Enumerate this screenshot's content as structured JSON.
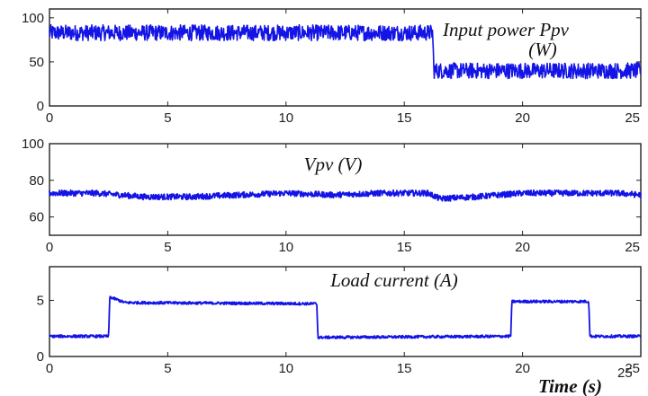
{
  "figure": {
    "x_label": "Time (s)",
    "x_label_superscript": "25"
  },
  "chart_data": [
    {
      "type": "line",
      "title": "Input power Ppv",
      "title_line2": "(W)",
      "xlabel": "",
      "ylabel": "",
      "xlim": [
        0,
        25
      ],
      "ylim": [
        0,
        110
      ],
      "xticks": [
        0,
        5,
        10,
        15,
        20,
        25
      ],
      "yticks": [
        0,
        50,
        100
      ],
      "grid": false,
      "series": [
        {
          "color": "#1414e6",
          "noise": 9,
          "x": [
            0,
            16.2,
            16.25,
            25
          ],
          "y": [
            83,
            83,
            40,
            40
          ]
        }
      ]
    },
    {
      "type": "line",
      "title": "Vpv (V)",
      "xlabel": "",
      "ylabel": "",
      "xlim": [
        0,
        25
      ],
      "ylim": [
        50,
        100
      ],
      "xticks": [
        0,
        5,
        10,
        15,
        20,
        25
      ],
      "yticks": [
        60,
        80,
        100
      ],
      "grid": false,
      "series": [
        {
          "color": "#1414e6",
          "noise": 1.6,
          "x": [
            0,
            2,
            4,
            6,
            8,
            10,
            12,
            14,
            16,
            16.5,
            18,
            20,
            22,
            24,
            25
          ],
          "y": [
            73,
            73,
            71,
            71,
            72,
            73,
            72,
            73,
            73,
            70,
            71,
            73,
            73,
            73,
            72
          ]
        }
      ]
    },
    {
      "type": "line",
      "title": "Load current (A)",
      "xlabel": "",
      "ylabel": "",
      "xlim": [
        0,
        25
      ],
      "ylim": [
        0,
        8
      ],
      "xticks": [
        0,
        5,
        10,
        15,
        20,
        25
      ],
      "yticks": [
        0,
        5
      ],
      "grid": false,
      "series": [
        {
          "color": "#1414e6",
          "noise": 0.12,
          "x": [
            0,
            2.5,
            2.55,
            3.2,
            11.3,
            11.35,
            19.5,
            19.55,
            22.8,
            22.85,
            25
          ],
          "y": [
            1.8,
            1.8,
            5.3,
            4.8,
            4.7,
            1.7,
            1.8,
            4.9,
            4.9,
            1.8,
            1.8
          ]
        }
      ]
    }
  ]
}
